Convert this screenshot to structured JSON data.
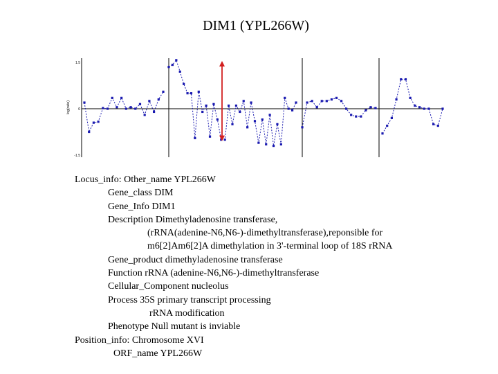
{
  "title": "DIM1 (YPL266W)",
  "chart_data": {
    "type": "line",
    "ylabel": "log(ratio)",
    "yticks": [
      "1.5",
      "0",
      "-1.5"
    ],
    "ylim": [
      -1.5,
      1.5
    ],
    "grid": false,
    "highlight_arrow": {
      "from": -1.0,
      "to": 1.5,
      "color": "#d21f1f"
    },
    "series_color": "#1a1ab0",
    "panels": [
      {
        "values": [
          0.2,
          -0.75,
          -0.45,
          -0.42,
          0.02,
          0.0,
          0.35,
          0.05,
          0.35,
          0.0,
          0.05,
          0.0,
          0.15,
          -0.2,
          0.25,
          -0.1,
          0.3,
          0.55
        ]
      },
      {
        "values": [
          1.35,
          1.42,
          1.57,
          1.2,
          0.8,
          0.5,
          0.5,
          -0.95,
          0.55,
          -0.1,
          0.1,
          -0.9,
          0.15,
          -0.35,
          -1.0,
          -1.0,
          0.1,
          -0.5,
          0.1,
          -0.1,
          0.25,
          -0.6,
          0.2,
          -0.4,
          -1.1,
          -0.35,
          -1.15,
          -0.2,
          -1.2,
          -0.5,
          -1.15,
          0.35,
          0.0,
          -0.05,
          0.2
        ]
      },
      {
        "values": [
          -0.6,
          0.2,
          0.25,
          0.05,
          0.25,
          0.25,
          0.3,
          0.35,
          0.25,
          0.0,
          -0.2,
          -0.25,
          -0.25,
          -0.05,
          0.05,
          0.02
        ]
      },
      {
        "values": [
          -0.8,
          -0.55,
          -0.3,
          0.3,
          0.95,
          0.95,
          0.35,
          0.1,
          0.05,
          0.0,
          0.0,
          -0.5,
          -0.55,
          0.0
        ]
      }
    ]
  },
  "info": {
    "lines": [
      "Locus_info: Other_name YPL266W",
      "Gene_class DIM",
      "Gene_Info DIM1",
      "Description Dimethyladenosine transferase,",
      "(rRNA(adenine-N6,N6-)-dimethyltransferase),reponsible for",
      "m6[2]Am6[2]A dimethylation in 3'-terminal loop of 18S rRNA",
      "Gene_product dimethyladenosine transferase",
      "Function rRNA (adenine-N6,N6-)-dimethyltransferase",
      "Cellular_Component nucleolus",
      "Process 35S primary transcript processing",
      "rRNA modification",
      "Phenotype Null mutant is inviable",
      "Position_info: Chromosome XVI",
      "ORF_name YPL266W"
    ]
  }
}
